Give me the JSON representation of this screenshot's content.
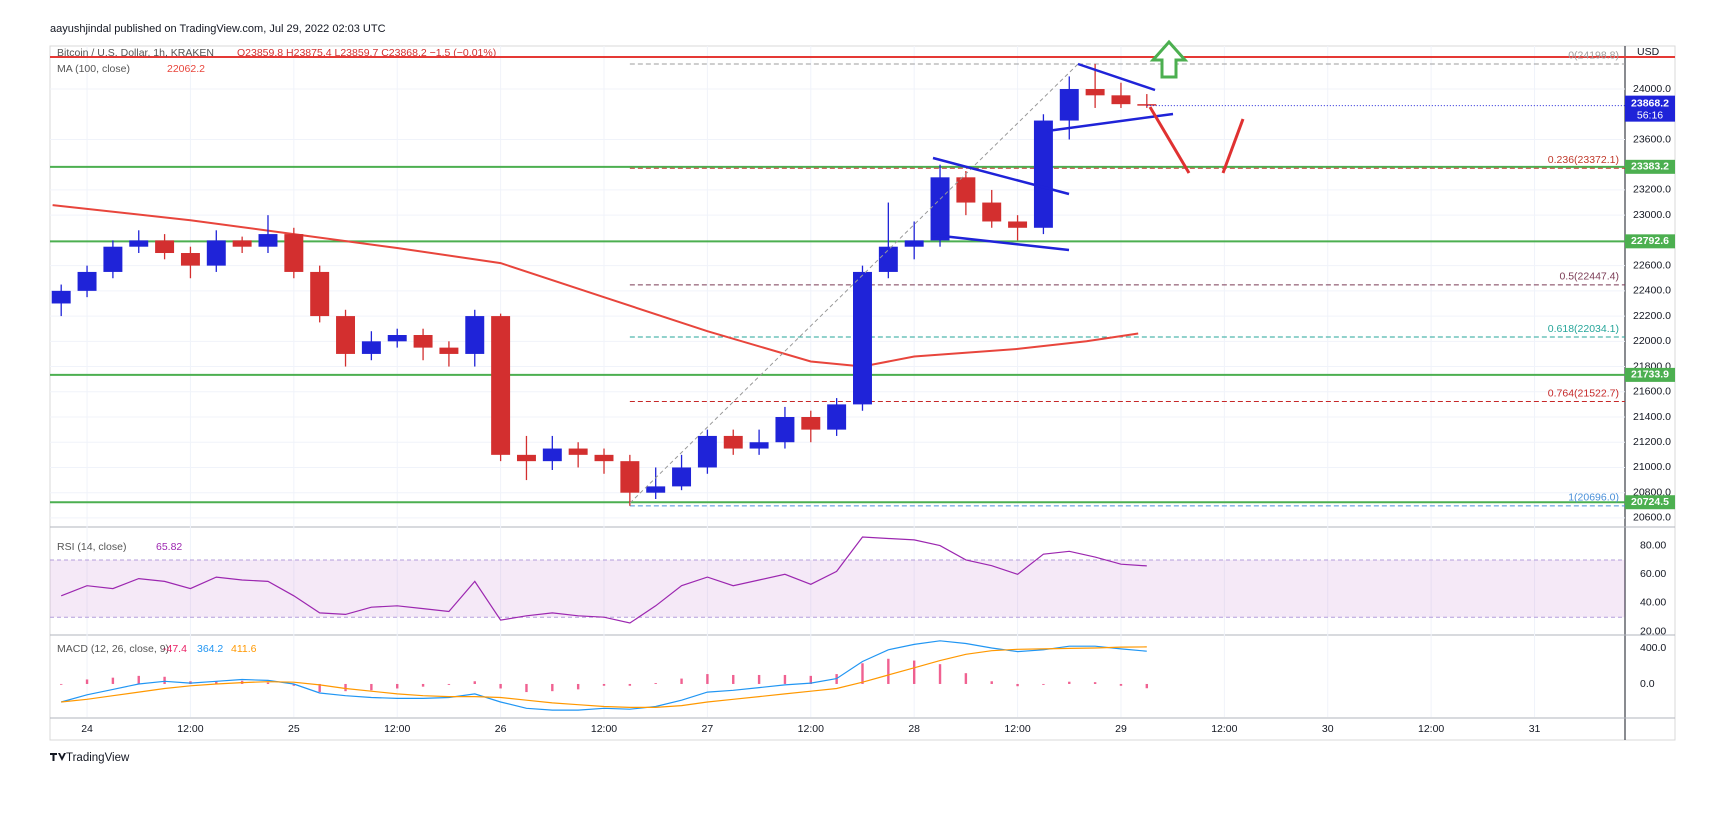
{
  "chart_data": {
    "type": "candlestick",
    "publisher": "aayushjindal published on TradingView.com, Jul 29, 2022 02:03 UTC",
    "title": "Bitcoin / U.S. Dollar, 1h, KRAKEN",
    "ohlc_text": "O23859.8 H23875.4 L23859.7 C23868.2 −1.5 (−0.01%)",
    "currency": "USD",
    "brand": "TradingView",
    "up_color": "#1f23d8",
    "down_color": "#d32f2f",
    "xlim": [
      -4.3,
      178.5
    ],
    "xticks": [
      {
        "value": 0,
        "label": "24"
      },
      {
        "value": 12,
        "label": "12:00"
      },
      {
        "value": 24,
        "label": "25"
      },
      {
        "value": 36,
        "label": "12:00"
      },
      {
        "value": 48,
        "label": "26"
      },
      {
        "value": 60,
        "label": "12:00"
      },
      {
        "value": 72,
        "label": "27"
      },
      {
        "value": 84,
        "label": "12:00"
      },
      {
        "value": 96,
        "label": "28"
      },
      {
        "value": 108,
        "label": "12:00"
      },
      {
        "value": 120,
        "label": "29"
      },
      {
        "value": 132,
        "label": "12:00"
      },
      {
        "value": 144,
        "label": "30"
      },
      {
        "value": 156,
        "label": "12:00"
      },
      {
        "value": 168,
        "label": "31"
      }
    ],
    "ylim": [
      20536,
      24341
    ],
    "yticks": [
      {
        "value": 20600,
        "label": "20600.0"
      },
      {
        "value": 20800,
        "label": "20800.0"
      },
      {
        "value": 21000,
        "label": "21000.0"
      },
      {
        "value": 21200,
        "label": "21200.0"
      },
      {
        "value": 21400,
        "label": "21400.0"
      },
      {
        "value": 21600,
        "label": "21600.0"
      },
      {
        "value": 21800,
        "label": "21800.0"
      },
      {
        "value": 22000,
        "label": "22000.0"
      },
      {
        "value": 22200,
        "label": "22200.0"
      },
      {
        "value": 22400,
        "label": "22400.0"
      },
      {
        "value": 22600,
        "label": "22600.0"
      },
      {
        "value": 23000,
        "label": "23000.0"
      },
      {
        "value": 23200,
        "label": "23200.0"
      },
      {
        "value": 23600,
        "label": "23600.0"
      },
      {
        "value": 24000,
        "label": "24000.0"
      }
    ],
    "grid": true,
    "candles": {
      "x": [
        -3,
        0,
        3,
        6,
        9,
        12,
        15,
        18,
        21,
        24,
        27,
        30,
        33,
        36,
        39,
        42,
        45,
        48,
        51,
        54,
        57,
        60,
        63,
        66,
        69,
        72,
        75,
        78,
        81,
        84,
        87,
        90,
        93,
        96,
        99,
        102,
        105,
        108,
        111,
        114,
        117,
        120,
        123
      ],
      "open": [
        22300,
        22400,
        22550,
        22750,
        22800,
        22700,
        22600,
        22800,
        22750,
        22850,
        22550,
        22200,
        21900,
        22000,
        22050,
        21950,
        21900,
        22200,
        21100,
        21050,
        21150,
        21100,
        21050,
        20800,
        20850,
        21000,
        21250,
        21150,
        21200,
        21400,
        21300,
        21500,
        22550,
        22750,
        22800,
        23300,
        23100,
        22950,
        22900,
        23750,
        24000,
        23950,
        23880
      ],
      "high": [
        22450,
        22600,
        22800,
        22880,
        22850,
        22750,
        22880,
        22830,
        23000,
        22900,
        22600,
        22250,
        22080,
        22100,
        22100,
        22000,
        22250,
        22220,
        21250,
        21250,
        21200,
        21150,
        21100,
        21000,
        21100,
        21300,
        21300,
        21300,
        21480,
        21450,
        21550,
        22600,
        23100,
        22950,
        23400,
        23350,
        23200,
        23000,
        23800,
        24100,
        24198.8,
        24050,
        23960
      ],
      "low": [
        22200,
        22350,
        22500,
        22700,
        22650,
        22500,
        22550,
        22700,
        22700,
        22500,
        22150,
        21800,
        21850,
        21950,
        21850,
        21800,
        21800,
        21050,
        20900,
        20980,
        21000,
        20950,
        20696,
        20750,
        20820,
        20950,
        21100,
        21100,
        21150,
        21200,
        21250,
        21450,
        22500,
        22650,
        22750,
        23000,
        22900,
        22800,
        22850,
        23600,
        23850,
        23850,
        23850
      ],
      "close": [
        22400,
        22550,
        22750,
        22800,
        22700,
        22600,
        22800,
        22750,
        22850,
        22550,
        22200,
        21900,
        22000,
        22050,
        21950,
        21900,
        22200,
        21100,
        21050,
        21150,
        21100,
        21050,
        20800,
        20850,
        21000,
        21250,
        21150,
        21200,
        21400,
        21300,
        21500,
        22550,
        22750,
        22800,
        23300,
        23100,
        22950,
        22900,
        23750,
        24000,
        23950,
        23880,
        23868.2
      ]
    },
    "last_price": 23868.2,
    "countdown": "56:16",
    "ma": {
      "name": "MA (100, close)",
      "last": 22062.2,
      "color": "#e8453c",
      "x": [
        -4,
        12,
        24,
        36,
        48,
        60,
        72,
        84,
        90,
        96,
        108,
        116,
        122
      ],
      "values": [
        23080,
        22960,
        22850,
        22740,
        22620,
        22350,
        22080,
        21840,
        21800,
        21880,
        21940,
        22000,
        22062.2
      ]
    },
    "levels": [
      {
        "value": 23383.2,
        "color": "#4caf50"
      },
      {
        "value": 22792.6,
        "color": "#4caf50"
      },
      {
        "value": 21733.9,
        "color": "#4caf50"
      },
      {
        "value": 20724.5,
        "color": "#4caf50"
      }
    ],
    "resistance": {
      "value": 24254,
      "color": "#e53935"
    },
    "fib": {
      "start_x": 63,
      "levels": [
        {
          "label": "0(24198.8)",
          "value": 24198.8,
          "color": "#9e9e9e"
        },
        {
          "label": "0.236(23372.1)",
          "value": 23372.1,
          "color": "#c0392b"
        },
        {
          "label": "0.5(22447.4)",
          "value": 22447.4,
          "color": "#7b3b55"
        },
        {
          "label": "0.618(22034.1)",
          "value": 22034.1,
          "color": "#26a69a"
        },
        {
          "label": "0.764(21522.7)",
          "value": 21522.7,
          "color": "#c62828"
        },
        {
          "label": "1(20696.0)",
          "value": 20696.0,
          "color": "#4a90d9"
        }
      ]
    },
    "rsi": {
      "name": "RSI (14, close)",
      "last": 65.82,
      "color": "#9c27b0",
      "ylim": [
        19,
        92.3
      ],
      "yticks": [
        {
          "value": 20,
          "label": "20.00"
        },
        {
          "value": 40,
          "label": "40.00"
        },
        {
          "value": 60,
          "label": "60.00"
        },
        {
          "value": 80,
          "label": "80.00"
        }
      ],
      "band": [
        30,
        70
      ],
      "values": [
        45,
        52,
        50,
        57,
        55,
        50,
        58,
        56,
        55,
        45,
        33,
        32,
        37,
        38,
        36,
        34,
        55,
        28,
        31,
        33,
        31,
        30,
        26,
        38,
        52,
        58,
        52,
        56,
        60,
        53,
        62,
        86,
        85,
        84,
        80,
        70,
        66,
        60,
        74,
        76,
        72,
        67,
        65.82
      ]
    },
    "macd": {
      "name": "MACD (12, 26, close, 9)",
      "ylim": [
        -367,
        533
      ],
      "yticks": [
        {
          "value": 0,
          "label": "0.0"
        },
        {
          "value": 400,
          "label": "400.0"
        }
      ],
      "series": [
        {
          "name": "Histogram",
          "last": -47.4,
          "color": "#e91e63",
          "values": [
            0,
            50,
            70,
            90,
            80,
            30,
            30,
            35,
            15,
            -20,
            -90,
            -80,
            -70,
            -50,
            -30,
            -10,
            30,
            -50,
            -90,
            -80,
            -60,
            -20,
            -20,
            10,
            60,
            110,
            100,
            100,
            100,
            90,
            110,
            230,
            280,
            260,
            220,
            120,
            30,
            -25,
            -10,
            25,
            20,
            -20,
            -47.4
          ]
        },
        {
          "name": "MACD",
          "last": 364.2,
          "color": "#2196f3",
          "values": [
            -200,
            -120,
            -60,
            0,
            30,
            10,
            30,
            50,
            40,
            0,
            -100,
            -130,
            -150,
            -160,
            -160,
            -150,
            -110,
            -200,
            -270,
            -290,
            -290,
            -270,
            -280,
            -250,
            -180,
            -90,
            -70,
            -40,
            -10,
            10,
            60,
            250,
            380,
            440,
            480,
            450,
            400,
            360,
            380,
            420,
            420,
            390,
            364.2
          ]
        },
        {
          "name": "Signal",
          "last": 411.6,
          "color": "#ff9800",
          "values": [
            -200,
            -170,
            -130,
            -90,
            -50,
            -20,
            0,
            15,
            25,
            20,
            -10,
            -50,
            -80,
            -110,
            -130,
            -140,
            -140,
            -150,
            -180,
            -210,
            -230,
            -250,
            -260,
            -260,
            -240,
            -200,
            -170,
            -140,
            -110,
            -80,
            -50,
            20,
            100,
            180,
            260,
            330,
            370,
            385,
            390,
            395,
            400,
            410,
            411.6
          ]
        }
      ]
    }
  }
}
